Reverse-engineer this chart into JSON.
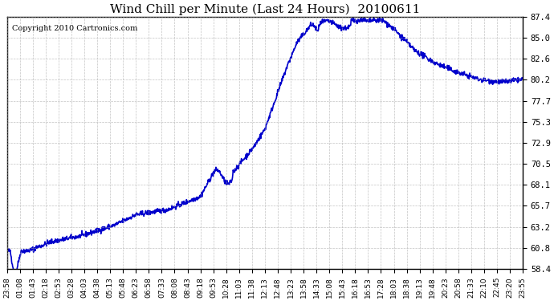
{
  "title": "Wind Chill per Minute (Last 24 Hours)  20100611",
  "copyright_text": "Copyright 2010 Cartronics.com",
  "line_color": "#0000CC",
  "background_color": "#ffffff",
  "plot_bg_color": "#ffffff",
  "grid_color": "#aaaaaa",
  "yticks": [
    58.4,
    60.8,
    63.2,
    65.7,
    68.1,
    70.5,
    72.9,
    75.3,
    77.7,
    80.2,
    82.6,
    85.0,
    87.4
  ],
  "xlabels": [
    "23:58",
    "01:08",
    "01:43",
    "02:18",
    "02:53",
    "03:28",
    "04:03",
    "04:38",
    "05:13",
    "05:48",
    "06:23",
    "06:58",
    "07:33",
    "08:08",
    "08:43",
    "09:18",
    "09:53",
    "10:28",
    "11:03",
    "11:38",
    "12:13",
    "12:48",
    "13:23",
    "13:58",
    "14:33",
    "15:08",
    "15:43",
    "16:18",
    "16:53",
    "17:28",
    "18:03",
    "18:38",
    "19:13",
    "19:48",
    "20:23",
    "20:58",
    "21:33",
    "22:10",
    "22:45",
    "23:20",
    "23:55"
  ],
  "ymin": 58.4,
  "ymax": 87.4,
  "line_width": 1.2
}
